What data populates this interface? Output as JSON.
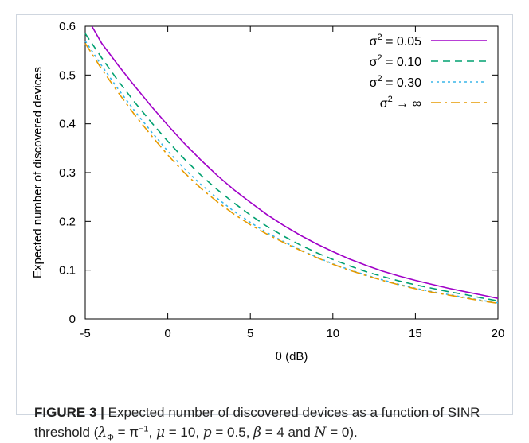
{
  "chart_data": {
    "type": "line",
    "xlabel": "θ (dB)",
    "ylabel": "Expected number of discovered devices",
    "xlim": [
      -5,
      20
    ],
    "ylim": [
      0,
      0.6
    ],
    "x_ticks": [
      "-5",
      "0",
      "5",
      "10",
      "15",
      "20"
    ],
    "y_ticks": [
      "0",
      "0.1",
      "0.2",
      "0.3",
      "0.4",
      "0.5",
      "0.6"
    ],
    "grid": false,
    "legend_position": "top-right",
    "series": [
      {
        "name": "σ² = 0.05",
        "label_main": "σ",
        "label_sup": "2",
        "label_rest": " = 0.05",
        "color": "#a000c8",
        "style": "solid",
        "x": [
          -4.6,
          -4,
          -3,
          -2,
          -1,
          0,
          1,
          2,
          3,
          4,
          5,
          6,
          7,
          8,
          9,
          10,
          11,
          12,
          13,
          14,
          15,
          16,
          17,
          18,
          19,
          20
        ],
        "y": [
          0.6,
          0.565,
          0.52,
          0.477,
          0.436,
          0.397,
          0.36,
          0.326,
          0.294,
          0.265,
          0.239,
          0.214,
          0.192,
          0.172,
          0.154,
          0.138,
          0.123,
          0.11,
          0.098,
          0.088,
          0.079,
          0.071,
          0.063,
          0.056,
          0.049,
          0.042
        ]
      },
      {
        "name": "σ² = 0.10",
        "label_main": "σ",
        "label_sup": "2",
        "label_rest": " = 0.10",
        "color": "#00a070",
        "style": "dashed",
        "x": [
          -5,
          -4,
          -3,
          -2,
          -1,
          0,
          1,
          2,
          3,
          4,
          5,
          6,
          7,
          8,
          9,
          10,
          11,
          12,
          13,
          14,
          15,
          16,
          17,
          18,
          19,
          20
        ],
        "y": [
          0.585,
          0.535,
          0.488,
          0.444,
          0.403,
          0.364,
          0.328,
          0.295,
          0.265,
          0.238,
          0.213,
          0.19,
          0.17,
          0.152,
          0.136,
          0.122,
          0.109,
          0.097,
          0.087,
          0.078,
          0.07,
          0.063,
          0.056,
          0.05,
          0.043,
          0.037
        ]
      },
      {
        "name": "σ² = 0.30",
        "label_main": "σ",
        "label_sup": "2",
        "label_rest": " = 0.30",
        "color": "#38b6e8",
        "style": "dotted",
        "x": [
          -5,
          -4,
          -3,
          -2,
          -1,
          0,
          1,
          2,
          3,
          4,
          5,
          6,
          7,
          8,
          9,
          10,
          11,
          12,
          13,
          14,
          15,
          16,
          17,
          18,
          19,
          20
        ],
        "y": [
          0.57,
          0.519,
          0.471,
          0.426,
          0.384,
          0.344,
          0.308,
          0.276,
          0.247,
          0.221,
          0.198,
          0.177,
          0.159,
          0.142,
          0.127,
          0.113,
          0.101,
          0.09,
          0.08,
          0.071,
          0.063,
          0.056,
          0.05,
          0.044,
          0.038,
          0.033
        ]
      },
      {
        "name": "σ² → ∞",
        "label_main": "σ",
        "label_sup": "2",
        "label_rest": " → ∞",
        "color": "#e69a00",
        "style": "dashdot",
        "x": [
          -5,
          -4,
          -3,
          -2,
          -1,
          0,
          1,
          2,
          3,
          4,
          5,
          6,
          7,
          8,
          9,
          10,
          11,
          12,
          13,
          14,
          15,
          16,
          17,
          18,
          19,
          20
        ],
        "y": [
          0.565,
          0.512,
          0.464,
          0.418,
          0.376,
          0.336,
          0.3,
          0.268,
          0.24,
          0.215,
          0.193,
          0.174,
          0.157,
          0.141,
          0.126,
          0.112,
          0.1,
          0.089,
          0.079,
          0.07,
          0.062,
          0.055,
          0.049,
          0.043,
          0.037,
          0.032
        ]
      }
    ]
  },
  "caption": {
    "figure_label": "FIGURE 3 |",
    "text_1": " Expected number of discovered devices as a function of SINR threshold (",
    "lambda": "λ",
    "lambda_sub": "Φ",
    "eq_pi": " = π",
    "pi_sup": "−1",
    "text_2": ", ",
    "mu": "μ",
    "mu_val": " = 10, ",
    "p": "p",
    "p_val": " = 0.5, ",
    "beta": "β",
    "beta_val": " = 4 and ",
    "n": "N",
    "n_val": " = 0)."
  }
}
